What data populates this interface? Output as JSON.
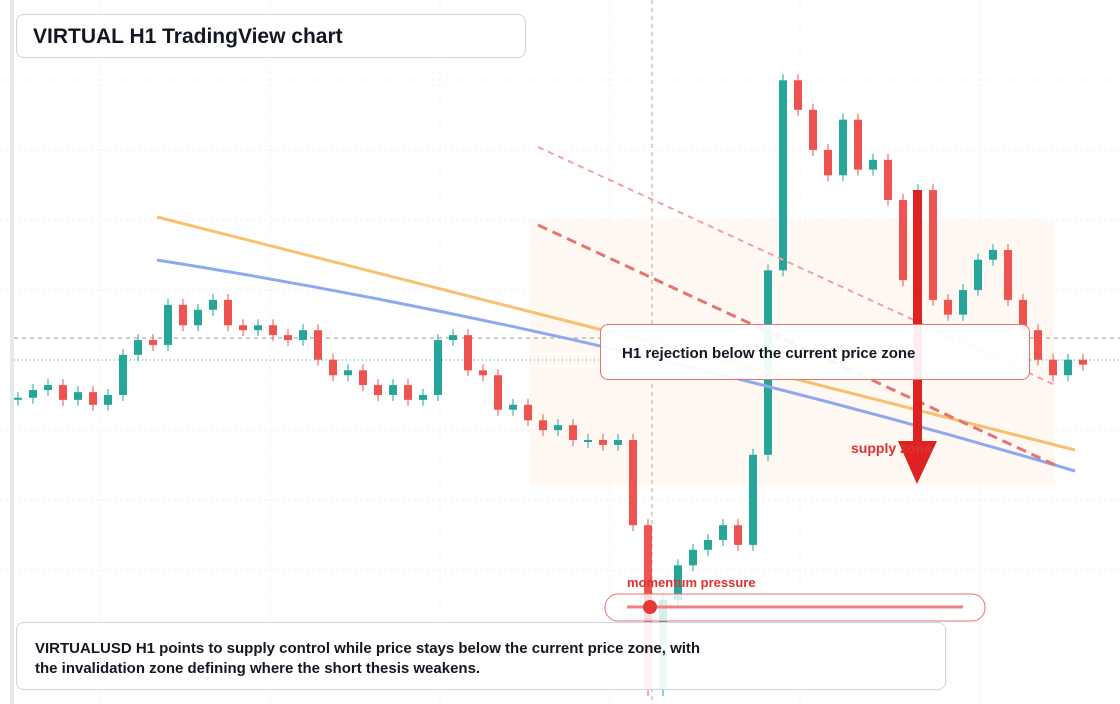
{
  "header": {
    "title": "VIRTUAL H1 TradingView chart"
  },
  "annotations": {
    "rejection": "H1 rejection below the current price zone",
    "supply": "supply zone",
    "momentum": "momentum pressure"
  },
  "description": "VIRTUALUSD H1 points to supply control while price stays below the current price zone, with the invalidation zone defining where the short thesis weakens.",
  "chart_data": {
    "type": "candlestick",
    "up_color": "#26a69a",
    "down_color": "#ef5350",
    "ylim": [
      0,
      100
    ],
    "values": [
      43.5,
      44.6,
      45.3,
      43.2,
      44.3,
      42.5,
      43.9,
      49.6,
      51.7,
      51.0,
      56.7,
      53.8,
      56.0,
      57.4,
      53.8,
      53.1,
      53.8,
      52.4,
      51.7,
      53.1,
      48.9,
      46.7,
      47.4,
      45.3,
      43.9,
      45.3,
      43.2,
      43.9,
      51.7,
      52.4,
      47.4,
      46.7,
      41.8,
      42.5,
      40.3,
      38.9,
      39.6,
      37.5,
      37.5,
      36.8,
      37.5,
      25.4,
      2.0,
      14.8,
      19.7,
      21.9,
      23.3,
      25.4,
      22.6,
      35.4,
      61.6,
      88.6,
      84.4,
      78.7,
      75.1,
      83.0,
      75.9,
      77.3,
      71.6,
      60.2,
      73.0,
      57.4,
      55.3,
      58.8,
      63.1,
      64.5,
      57.4,
      53.1,
      48.9,
      46.7,
      48.9,
      48.2
    ]
  }
}
